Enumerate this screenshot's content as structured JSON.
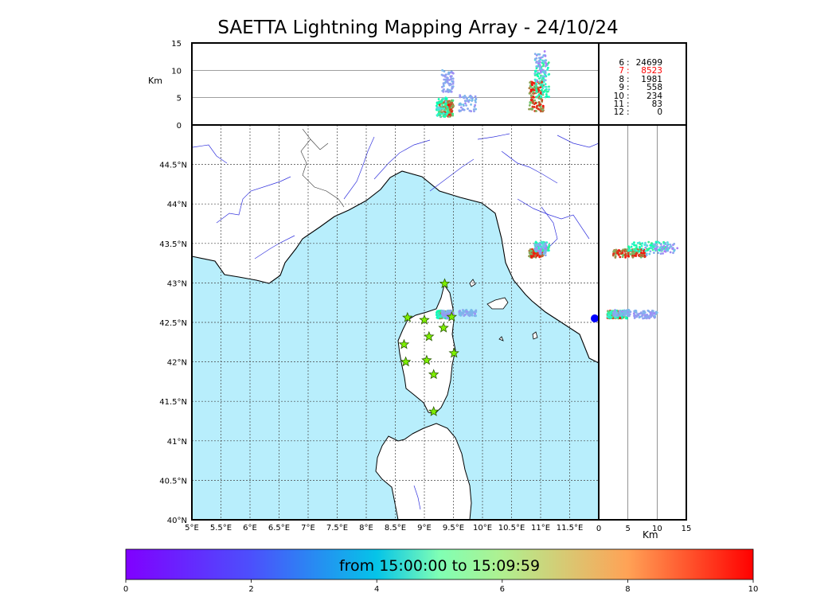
{
  "title": "SAETTA Lightning Mapping Array - 24/10/24",
  "counts": [
    {
      "level": "6",
      "count": "24699",
      "highlight": false
    },
    {
      "level": "7",
      "count": "8523",
      "highlight": true
    },
    {
      "level": "8",
      "count": "1981",
      "highlight": false
    },
    {
      "level": "9",
      "count": "558",
      "highlight": false
    },
    {
      "level": "10",
      "count": "234",
      "highlight": false
    },
    {
      "level": "11",
      "count": "83",
      "highlight": false
    },
    {
      "level": "12",
      "count": "0",
      "highlight": false
    }
  ],
  "count_separator": ":",
  "colorbar": {
    "label": "from 15:00:00 to 15:09:59",
    "ticks": [
      "0",
      "2",
      "4",
      "6",
      "8",
      "10"
    ],
    "range": [
      0,
      10
    ],
    "colormap": "rainbow"
  },
  "colors": {
    "sea": "#b8eefc",
    "land": "#ffffff",
    "rivers": "#3030e0",
    "borders": "#000000",
    "station_fill": "#7ef000",
    "highlight": "#ff0000"
  },
  "chart_data": {
    "type": "scatter",
    "map": {
      "lon_range": [
        5,
        12
      ],
      "lat_range": [
        40,
        45
      ],
      "lon_ticks": [
        "5°E",
        "5.5°E",
        "6°E",
        "6.5°E",
        "7°E",
        "7.5°E",
        "8°E",
        "8.5°E",
        "9°E",
        "9.5°E",
        "10°E",
        "10.5°E",
        "11°E",
        "11.5°E"
      ],
      "lat_ticks": [
        "40°N",
        "40.5°N",
        "41°N",
        "41.5°N",
        "42°N",
        "42.5°N",
        "43°N",
        "43.5°N",
        "44°N",
        "44.5°N"
      ],
      "grid": true
    },
    "altitude_top": {
      "ylabel": "Km",
      "ylim": [
        0,
        15
      ],
      "yticks": [
        "0",
        "5",
        "10",
        "15"
      ]
    },
    "altitude_side": {
      "xlabel": "Km",
      "xlim": [
        0,
        15
      ],
      "xticks": [
        "0",
        "5",
        "10",
        "15"
      ]
    },
    "stations": [
      {
        "lon": 9.35,
        "lat": 42.99
      },
      {
        "lon": 8.71,
        "lat": 42.56
      },
      {
        "lon": 9.0,
        "lat": 42.53
      },
      {
        "lon": 9.47,
        "lat": 42.57
      },
      {
        "lon": 9.33,
        "lat": 42.43
      },
      {
        "lon": 9.08,
        "lat": 42.32
      },
      {
        "lon": 8.65,
        "lat": 42.22
      },
      {
        "lon": 9.51,
        "lat": 42.11
      },
      {
        "lon": 9.04,
        "lat": 42.02
      },
      {
        "lon": 8.68,
        "lat": 42.0
      },
      {
        "lon": 9.16,
        "lat": 41.84
      },
      {
        "lon": 9.16,
        "lat": 41.37
      }
    ],
    "clusters": [
      {
        "name_hidden": "",
        "lon": [
          9.25,
          9.5
        ],
        "lat": [
          42.55,
          42.65
        ],
        "alt": [
          1.5,
          4.5
        ],
        "t": [
          6,
          10
        ],
        "n": 160
      },
      {
        "lon": [
          9.2,
          9.4
        ],
        "lat": [
          42.55,
          42.65
        ],
        "alt": [
          1.5,
          5.0
        ],
        "t": [
          3,
          6
        ],
        "n": 50
      },
      {
        "lon": [
          9.6,
          9.9
        ],
        "lat": [
          42.58,
          42.66
        ],
        "alt": [
          2.5,
          5.5
        ],
        "t": [
          1.8,
          2.8
        ],
        "n": 60
      },
      {
        "lon": [
          9.3,
          9.5
        ],
        "lat": [
          42.55,
          42.65
        ],
        "alt": [
          6.0,
          10.0
        ],
        "t": [
          1.8,
          2.6
        ],
        "n": 70
      },
      {
        "lon": [
          10.8,
          11.05
        ],
        "lat": [
          43.32,
          43.43
        ],
        "alt": [
          2.5,
          8.0
        ],
        "t": [
          7,
          10
        ],
        "n": 140
      },
      {
        "lon": [
          10.9,
          11.15
        ],
        "lat": [
          43.4,
          43.52
        ],
        "alt": [
          5.0,
          12.0
        ],
        "t": [
          3,
          6.5
        ],
        "n": 90
      },
      {
        "lon": [
          10.9,
          11.1
        ],
        "lat": [
          43.35,
          43.5
        ],
        "alt": [
          8.0,
          13.5
        ],
        "t": [
          1.5,
          3
        ],
        "n": 50
      }
    ]
  }
}
